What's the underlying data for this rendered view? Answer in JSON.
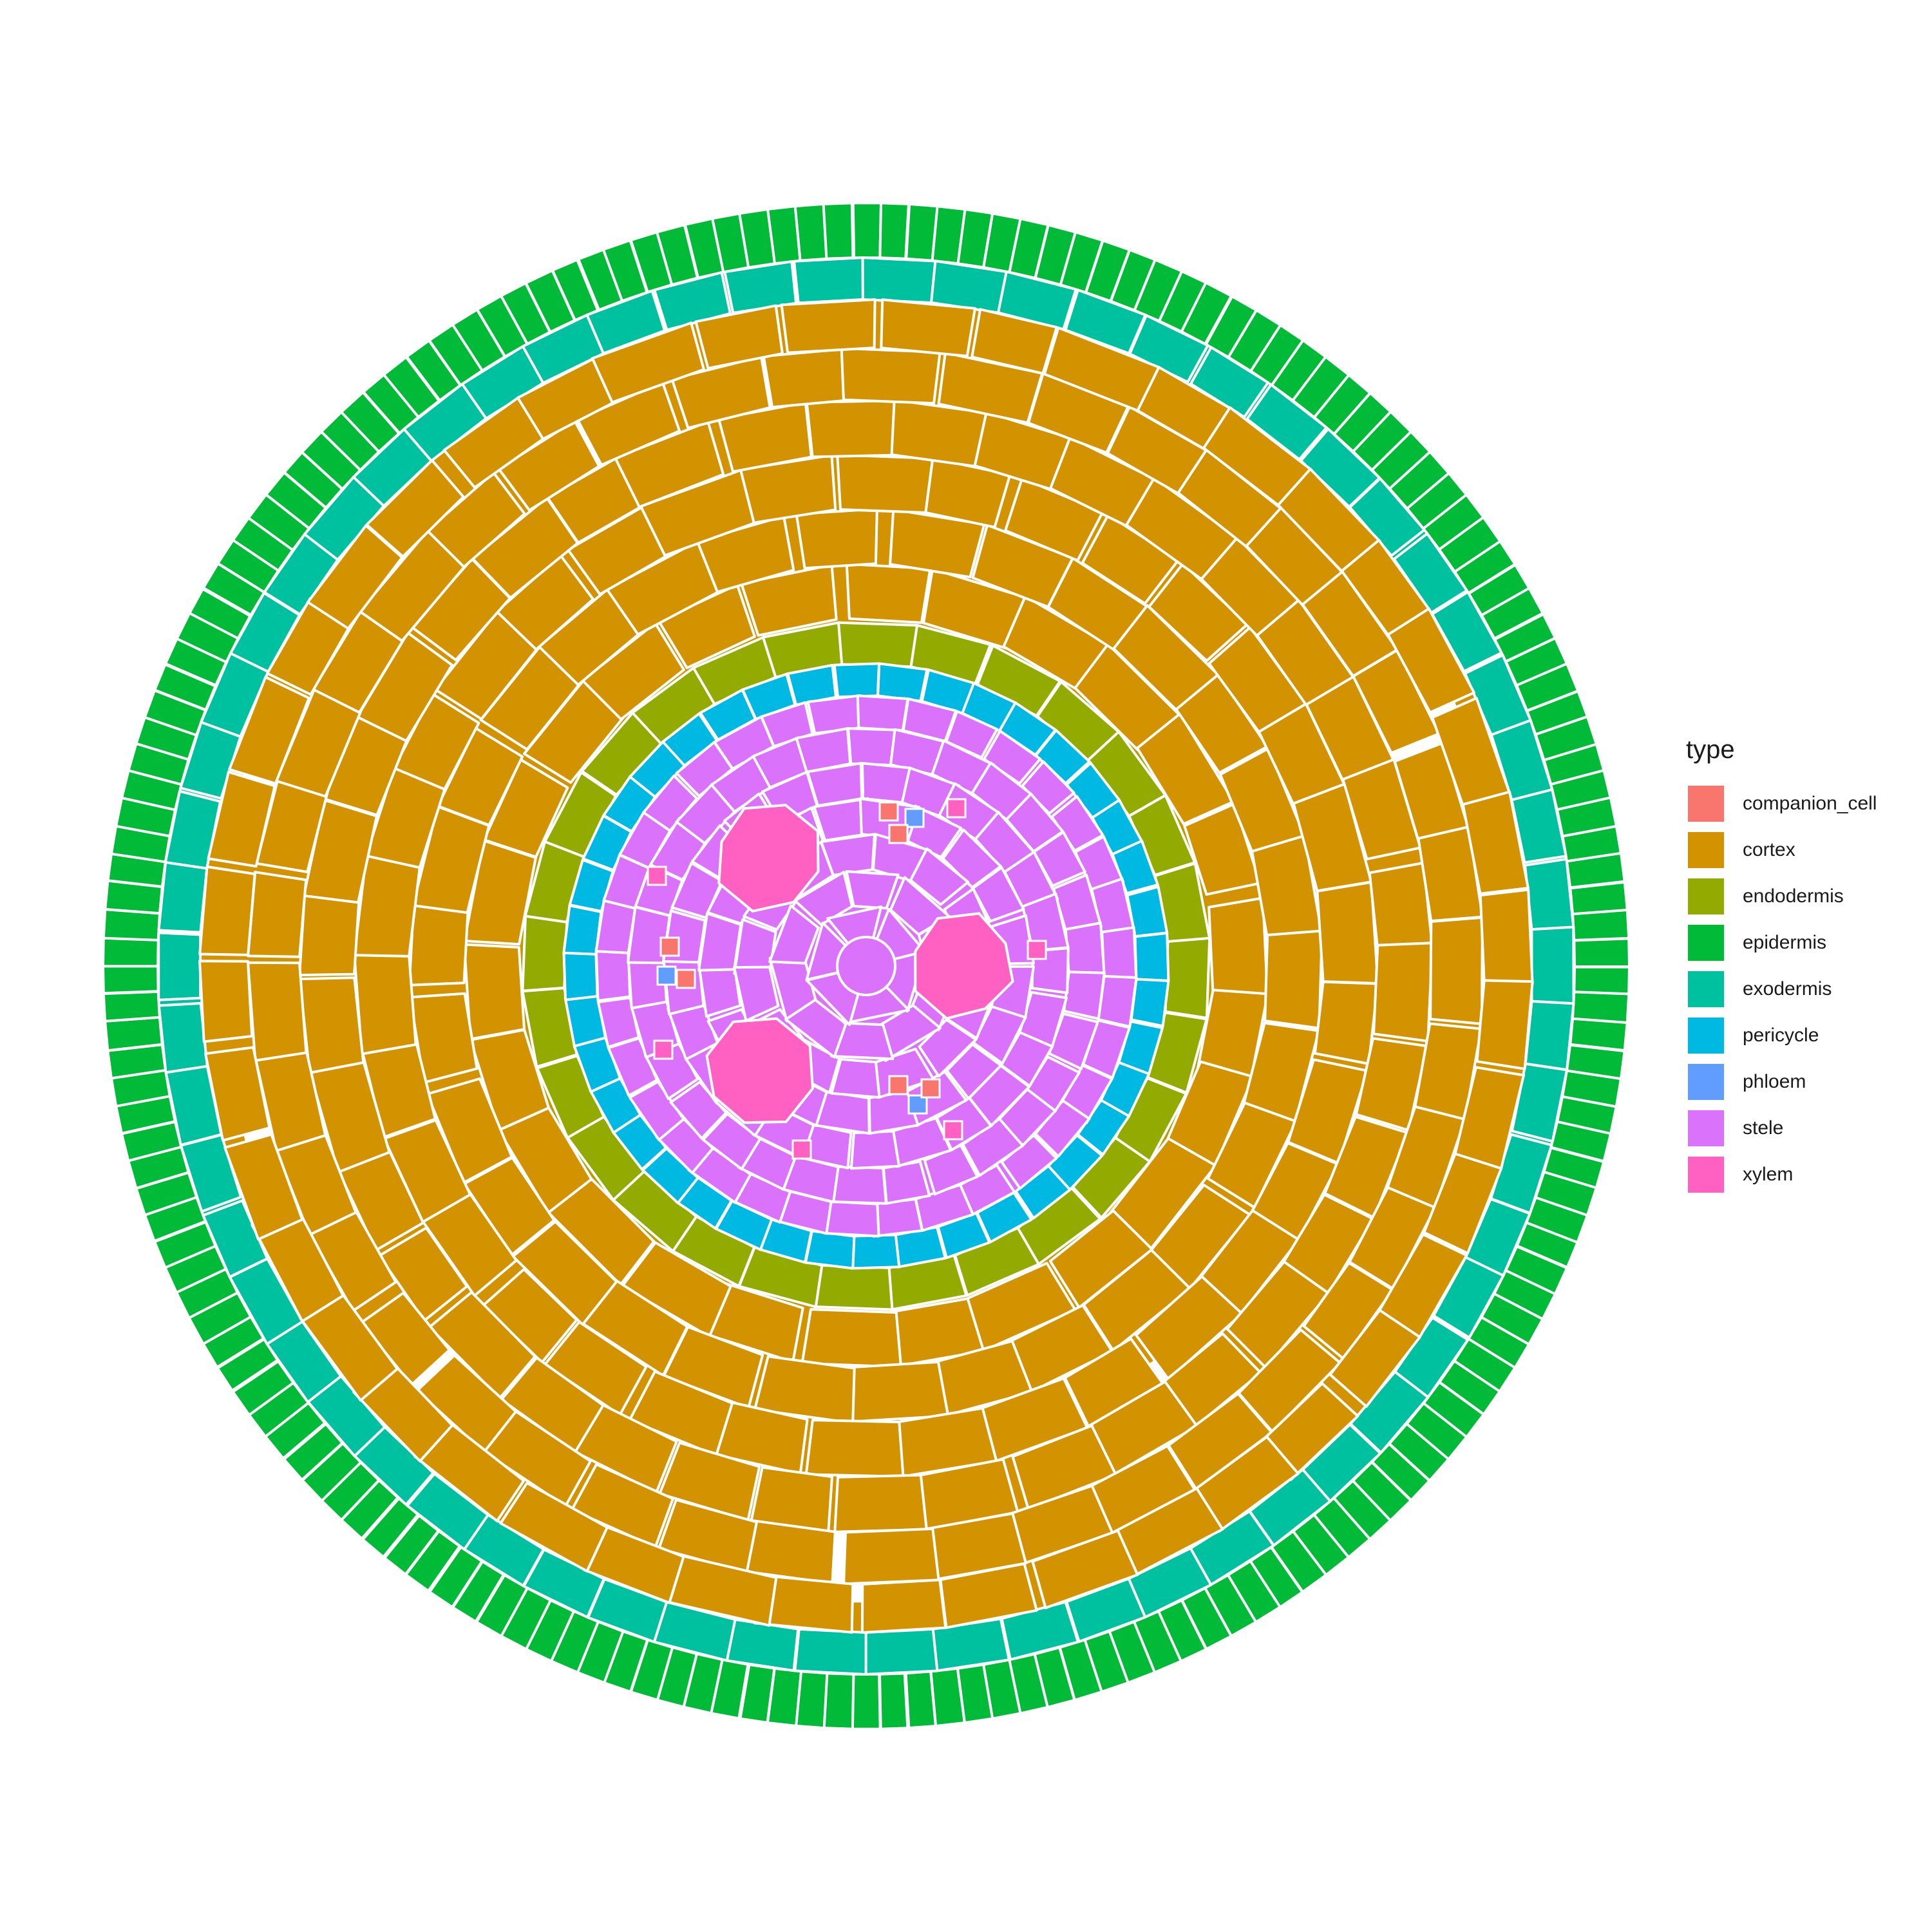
{
  "legend": {
    "title": "type",
    "items": [
      {
        "key": "companion_cell",
        "label": "companion_cell",
        "color": "#F8766D"
      },
      {
        "key": "cortex",
        "label": "cortex",
        "color": "#D39200"
      },
      {
        "key": "endodermis",
        "label": "endodermis",
        "color": "#93AA00"
      },
      {
        "key": "epidermis",
        "label": "epidermis",
        "color": "#00BA38"
      },
      {
        "key": "exodermis",
        "label": "exodermis",
        "color": "#00C19F"
      },
      {
        "key": "pericycle",
        "label": "pericycle",
        "color": "#00B9E3"
      },
      {
        "key": "phloem",
        "label": "phloem",
        "color": "#619CFF"
      },
      {
        "key": "stele",
        "label": "stele",
        "color": "#DB72FB"
      },
      {
        "key": "xylem",
        "label": "xylem",
        "color": "#FF61C3"
      }
    ]
  },
  "cell_outline_color": "#ffffff",
  "background_color": "#ffffff",
  "chart_data": {
    "type": "other",
    "description_kind": "root cross-section cell map colored by cell type",
    "tissue_rings_inner_to_outer": [
      "stele",
      "pericycle",
      "endodermis",
      "cortex",
      "exodermis",
      "epidermis"
    ],
    "approx_cell_counts": {
      "xylem_large": 3,
      "xylem_small": 6,
      "phloem": 3,
      "companion_cell": 6,
      "pericycle": 40,
      "endodermis": 28,
      "exodermis": 62,
      "epidermis": 170,
      "aerenchyma_gaps": 10
    }
  }
}
